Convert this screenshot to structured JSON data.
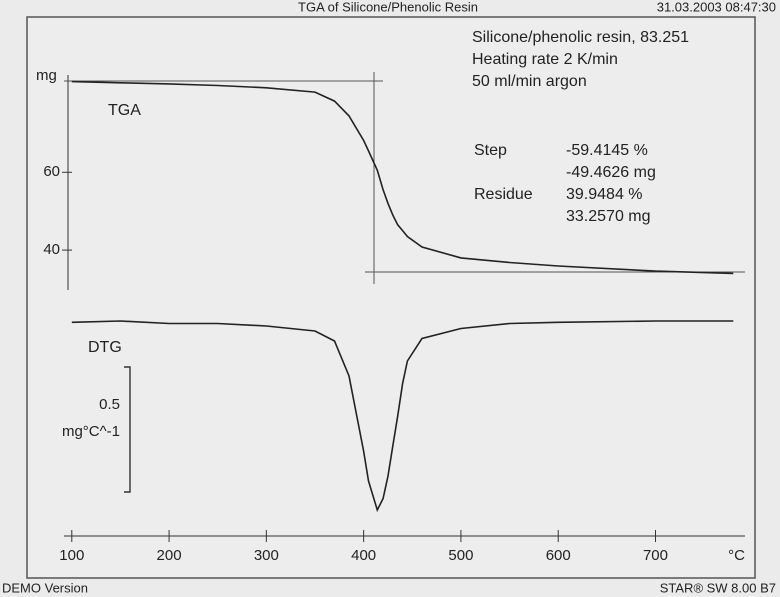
{
  "header_title": "TGA of Silicone/Phenolic Resin",
  "timestamp": "31.03.2003 08:47:30",
  "footer_left": "DEMO Version",
  "footer_right": "STAR® SW 8.00 B7",
  "chart_data": {
    "type": "line",
    "x": [
      100,
      150,
      200,
      250,
      300,
      350,
      370,
      385,
      400,
      405,
      414,
      420,
      425,
      430,
      435,
      440,
      445,
      460,
      500,
      550,
      600,
      700,
      780
    ],
    "series": [
      {
        "name": "TGA",
        "color": "#222222",
        "values": [
          83.3,
          83.0,
          82.7,
          82.3,
          81.7,
          80.6,
          78.3,
          74.5,
          68.2,
          65.5,
          60.5,
          55.5,
          52,
          49,
          46.5,
          45,
          43.5,
          40.8,
          38,
          36.8,
          35.9,
          34.6,
          34.0
        ]
      },
      {
        "name": "DTG",
        "color": "#222222",
        "axis": "y2",
        "values": [
          -0.005,
          0,
          -0.01,
          -0.01,
          -0.02,
          -0.04,
          -0.08,
          -0.22,
          -0.52,
          -0.64,
          -0.756,
          -0.71,
          -0.62,
          -0.5,
          -0.38,
          -0.25,
          -0.16,
          -0.07,
          -0.03,
          -0.01,
          -0.005,
          0,
          0
        ]
      }
    ],
    "xlim": [
      92,
      792
    ],
    "xticks": [
      100,
      200,
      300,
      400,
      500,
      600,
      700
    ],
    "x_label": "°C",
    "ylim": [
      30,
      85
    ],
    "yticks": [
      40,
      60
    ],
    "y_label": "mg",
    "y2lim": [
      -0.816,
      0.104
    ],
    "scale_bar": 0.5,
    "scale_bar_unit": "mg°C^-1",
    "info": [
      "Silicone/phenolic resin, 83.251",
      "Heating rate 2 K/min",
      "50 ml/min argon"
    ],
    "results": [
      {
        "label": "Step",
        "lines": [
          "-59.4145 %",
          "-49.4626 mg"
        ]
      },
      {
        "label": "Residue",
        "lines": [
          "39.9484 %",
          "33.2570 mg"
        ]
      }
    ]
  }
}
